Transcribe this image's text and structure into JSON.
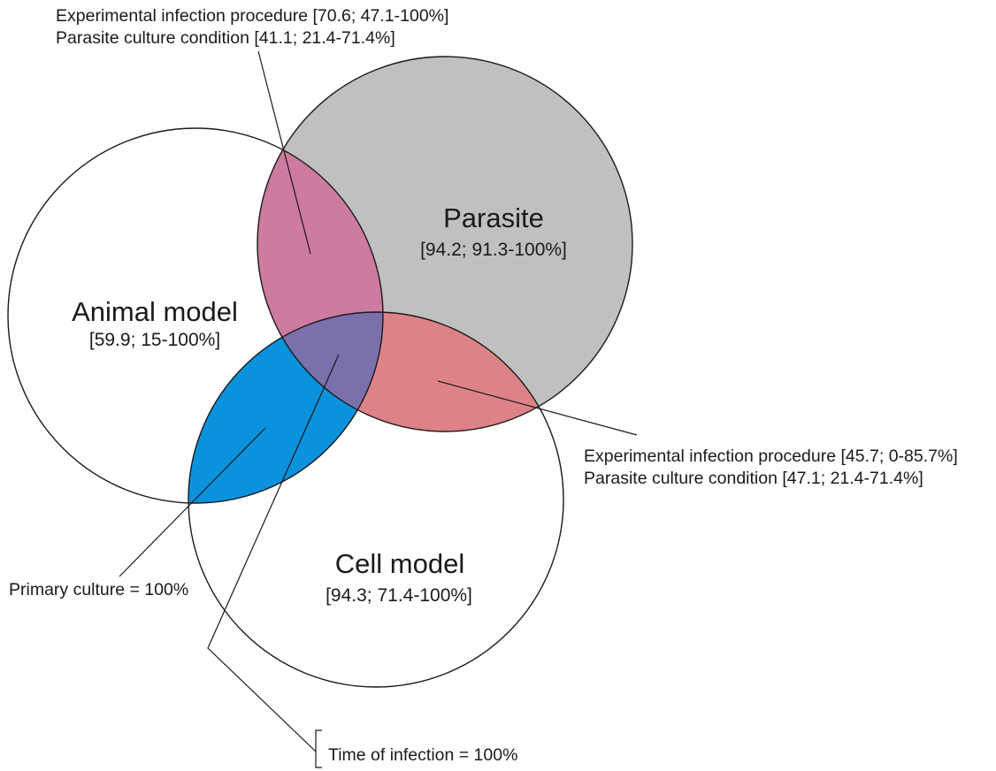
{
  "sets": {
    "animal": {
      "name": "Animal model",
      "value": "[59.9; 15-100%]"
    },
    "parasite": {
      "name": "Parasite",
      "value": "[94.2; 91.3-100%]"
    },
    "cell": {
      "name": "Cell model",
      "value": "[94.3; 71.4-100%]"
    }
  },
  "overlaps": {
    "animal_parasite": {
      "line1": "Experimental infection procedure [70.6; 47.1-100%]",
      "line2": "Parasite culture condition [41.1; 21.4-71.4%]"
    },
    "parasite_cell": {
      "line1": "Experimental infection procedure [45.7; 0-85.7%]",
      "line2": "Parasite culture condition [47.1; 21.4-71.4%]"
    },
    "animal_cell": {
      "label": "Primary culture = 100%"
    },
    "all_three": {
      "label": "Time of infection = 100%"
    }
  },
  "colors": {
    "parasite_fill": "#c0c0c0",
    "animal_parasite_fill": "#cd7b9f",
    "parasite_cell_fill": "#dd8387",
    "animal_cell_fill": "#0a92dc",
    "all_three_fill": "#7b70ac",
    "outline": "#1a1a1a"
  }
}
